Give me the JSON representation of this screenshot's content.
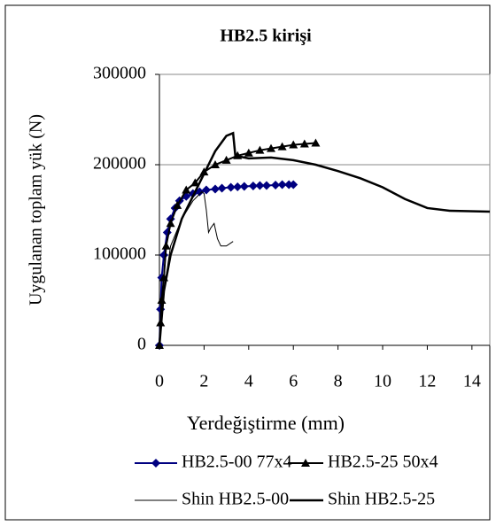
{
  "chart_data": {
    "type": "line",
    "title": "HB2.5 kirişi",
    "x_label": "Yerdeğiştirme (mm)",
    "y_label": "Uygulanan toplam yük (N)",
    "xlim": [
      0,
      14.8
    ],
    "xticks": [
      0,
      2,
      4,
      6,
      8,
      10,
      12,
      14
    ],
    "ylim": [
      0,
      300000
    ],
    "yticks": [
      0,
      100000,
      200000,
      300000
    ],
    "grid": true,
    "series": [
      {
        "name": "HB2.5-00 77x4",
        "color": "#000080",
        "marker": "diamond",
        "x": [
          0,
          0.05,
          0.1,
          0.2,
          0.35,
          0.5,
          0.7,
          0.9,
          1.2,
          1.5,
          1.8,
          2.1,
          2.5,
          2.8,
          3.2,
          3.5,
          3.8,
          4.2,
          4.5,
          4.8,
          5.2,
          5.5,
          5.8,
          6.0
        ],
        "values": [
          0,
          40000,
          75000,
          100000,
          125000,
          140000,
          152000,
          160000,
          165000,
          168000,
          170000,
          172000,
          173000,
          174000,
          175000,
          175500,
          176000,
          176500,
          177000,
          177000,
          177500,
          178000,
          178000,
          178000
        ]
      },
      {
        "name": "HB2.5-25 50x4",
        "color": "#000000",
        "marker": "triangle",
        "x": [
          0,
          0.05,
          0.1,
          0.2,
          0.3,
          0.5,
          0.8,
          1.2,
          1.6,
          2.0,
          2.5,
          3.0,
          3.5,
          4.0,
          4.5,
          5.0,
          5.5,
          6.0,
          6.5,
          7.0
        ],
        "values": [
          0,
          25000,
          50000,
          75000,
          110000,
          135000,
          155000,
          172000,
          180000,
          192000,
          200000,
          205000,
          210000,
          213000,
          216000,
          218000,
          220000,
          222000,
          223000,
          224000
        ]
      },
      {
        "name": "Shin HB2.5-00",
        "color": "#000000",
        "marker": "none",
        "x": [
          0,
          0.2,
          0.5,
          1.0,
          1.5,
          1.9,
          2.0,
          2.1,
          2.2,
          2.3,
          2.45,
          2.6,
          2.75,
          3.0,
          3.3
        ],
        "values": [
          0,
          60000,
          110000,
          140000,
          160000,
          170000,
          168000,
          150000,
          125000,
          130000,
          135000,
          118000,
          110000,
          110000,
          115000
        ]
      },
      {
        "name": "Shin HB2.5-25",
        "color": "#000000",
        "marker": "none",
        "x": [
          0,
          0.2,
          0.5,
          1.0,
          1.5,
          2.0,
          2.5,
          3.0,
          3.3,
          3.4,
          4.0,
          5.0,
          6.0,
          7.0,
          8.0,
          9.0,
          10.0,
          11.0,
          12.0,
          13.0,
          14.8
        ],
        "values": [
          0,
          60000,
          100000,
          140000,
          165000,
          190000,
          215000,
          232000,
          235000,
          210000,
          207000,
          208000,
          205000,
          200000,
          193000,
          185000,
          175000,
          162000,
          152000,
          149000,
          148000
        ]
      }
    ]
  }
}
